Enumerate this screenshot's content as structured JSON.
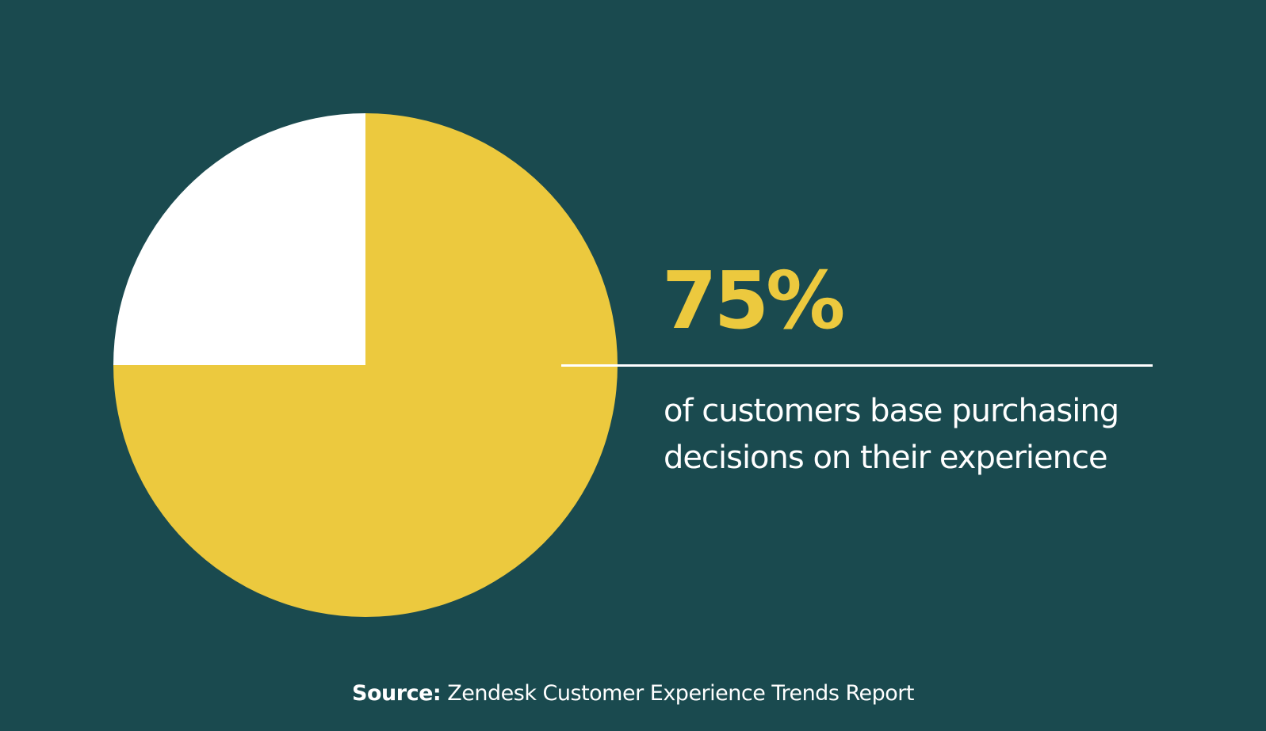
{
  "chart_data": {
    "type": "pie",
    "slices": [
      {
        "value": 75,
        "color": "#ecc93e"
      },
      {
        "value": 25,
        "color": "#ffffff"
      }
    ],
    "start": "top",
    "direction": "clockwise"
  },
  "headline": {
    "value": "75%",
    "description": "of customers base purchasing decisions on their experience"
  },
  "source": {
    "label": "Source:",
    "text": "Zendesk Customer Experience Trends Report"
  },
  "colors": {
    "background": "#1a4a4f",
    "accent": "#ecc93e",
    "text": "#ffffff"
  }
}
